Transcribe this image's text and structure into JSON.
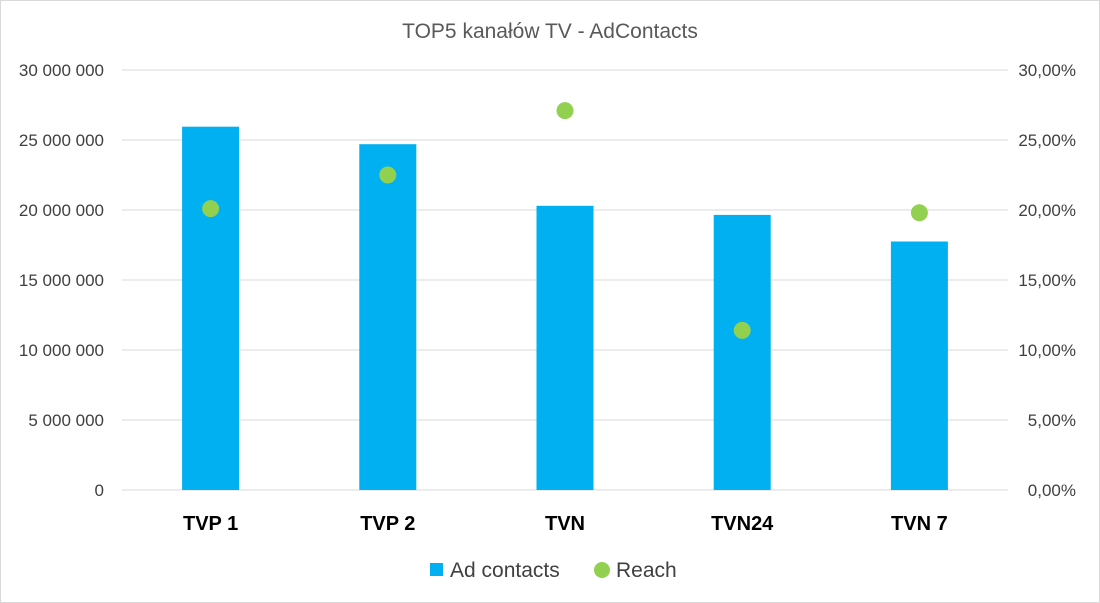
{
  "colors": {
    "bars": "#00b0f0",
    "reach": "#92d050",
    "grid": "#d9d9d9",
    "text": "#404040"
  },
  "chart_data": {
    "type": "bar",
    "title": "TOP5 kanałów TV - AdContacts",
    "categories": [
      "TVP 1",
      "TVP 2",
      "TVN",
      "TVN24",
      "TVN 7"
    ],
    "series": [
      {
        "name": "Ad contacts",
        "type": "bar",
        "axis": "left",
        "values": [
          25950000,
          24700000,
          20300000,
          19650000,
          17750000
        ]
      },
      {
        "name": "Reach",
        "type": "scatter",
        "axis": "right",
        "values": [
          20.1,
          22.5,
          27.1,
          11.4,
          19.8
        ]
      }
    ],
    "ylim": [
      0,
      30000000
    ],
    "y2lim": [
      0,
      30
    ],
    "y_ticks": [
      "0",
      "5 000 000",
      "10 000 000",
      "15 000 000",
      "20 000 000",
      "25 000 000",
      "30 000 000"
    ],
    "y2_ticks": [
      "0,00%",
      "5,00%",
      "10,00%",
      "15,00%",
      "20,00%",
      "25,00%",
      "30,00%"
    ],
    "grid": true,
    "legend_position": "bottom"
  }
}
